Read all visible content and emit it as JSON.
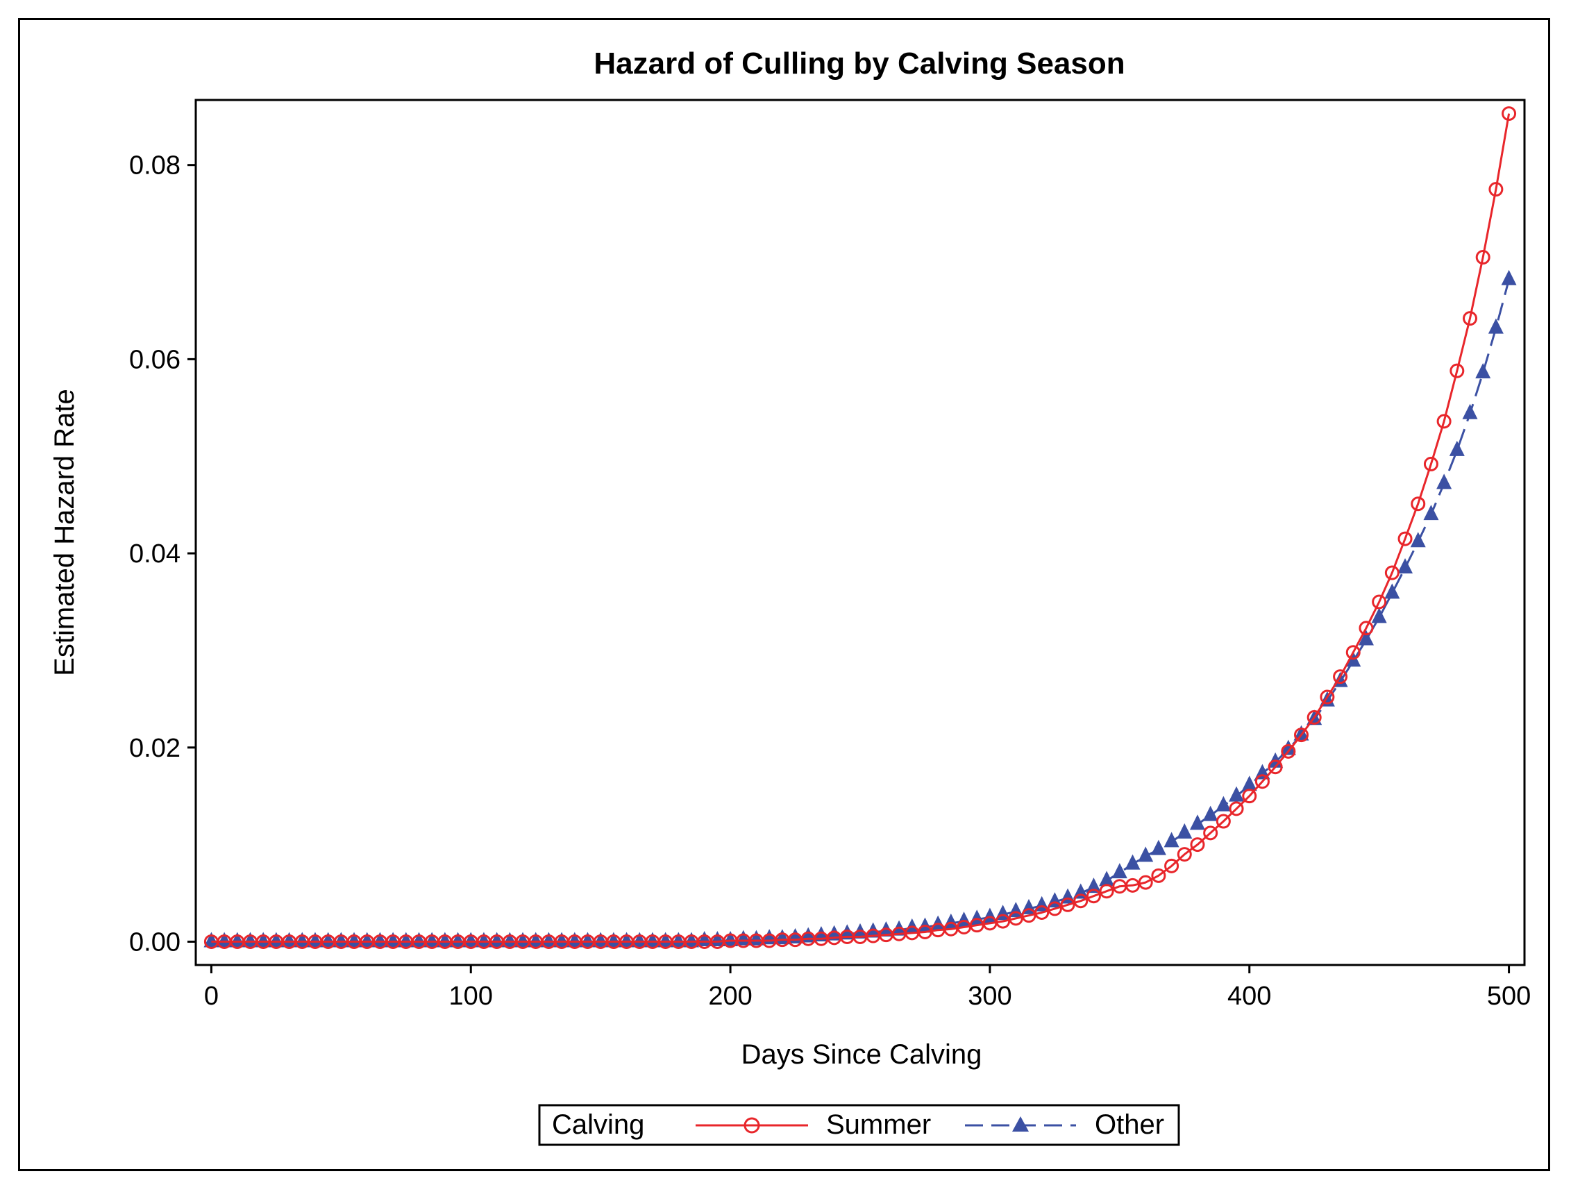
{
  "chart_data": {
    "type": "line",
    "title": "Hazard of Culling by Calving Season",
    "xlabel": "Days Since Calving",
    "ylabel": "Estimated Hazard Rate",
    "xlim": [
      -6,
      506
    ],
    "ylim": [
      -0.0024,
      0.0867
    ],
    "xticks": [
      0,
      100,
      200,
      300,
      400,
      500
    ],
    "yticks": [
      0.0,
      0.02,
      0.04,
      0.06,
      0.08
    ],
    "xtick_labels": [
      "0",
      "100",
      "200",
      "300",
      "400",
      "500"
    ],
    "ytick_labels": [
      "0.00",
      "0.02",
      "0.04",
      "0.06",
      "0.08"
    ],
    "grid": false,
    "legend": {
      "title": "Calving",
      "position": "bottom-center",
      "entries": [
        "Summer",
        "Other"
      ]
    },
    "series": [
      {
        "name": "Summer",
        "color": "#e8262b",
        "line_style": "solid",
        "marker": "circle",
        "x": [
          0,
          5,
          10,
          15,
          20,
          25,
          30,
          35,
          40,
          45,
          50,
          55,
          60,
          65,
          70,
          75,
          80,
          85,
          90,
          95,
          100,
          105,
          110,
          115,
          120,
          125,
          130,
          135,
          140,
          145,
          150,
          155,
          160,
          165,
          170,
          175,
          180,
          185,
          190,
          195,
          200,
          205,
          210,
          215,
          220,
          225,
          230,
          235,
          240,
          245,
          250,
          255,
          260,
          265,
          270,
          275,
          280,
          285,
          290,
          295,
          300,
          305,
          310,
          315,
          320,
          325,
          330,
          335,
          340,
          345,
          350,
          355,
          360,
          365,
          370,
          375,
          380,
          385,
          390,
          395,
          400,
          405,
          410,
          415,
          420,
          425,
          430,
          435,
          440,
          445,
          450,
          455,
          460,
          465,
          470,
          475,
          480,
          485,
          490,
          495,
          500
        ],
        "y": [
          0.0,
          0.0,
          0.0,
          0.0,
          0.0,
          0.0,
          0.0,
          0.0,
          0.0,
          0.0,
          0.0,
          0.0,
          0.0,
          0.0,
          0.0,
          0.0,
          0.0,
          0.0,
          0.0,
          0.0,
          0.0,
          0.0,
          0.0,
          0.0,
          0.0,
          0.0,
          0.0,
          0.0,
          0.0,
          0.0,
          0.0,
          0.0,
          0.0,
          0.0,
          0.0,
          0.0,
          0.0,
          0.0,
          0.0,
          0.0,
          0.0001,
          0.0001,
          0.0001,
          0.0001,
          0.0002,
          0.0002,
          0.0003,
          0.0003,
          0.0004,
          0.0005,
          0.0005,
          0.0006,
          0.0007,
          0.0008,
          0.0009,
          0.001,
          0.0012,
          0.0013,
          0.0015,
          0.0017,
          0.0019,
          0.0021,
          0.0024,
          0.0027,
          0.003,
          0.0034,
          0.0038,
          0.0042,
          0.0047,
          0.0052,
          0.0057,
          0.0058,
          0.0061,
          0.0068,
          0.0078,
          0.009,
          0.01,
          0.0112,
          0.0124,
          0.0137,
          0.015,
          0.0165,
          0.018,
          0.0196,
          0.0213,
          0.0231,
          0.0252,
          0.0273,
          0.0298,
          0.0323,
          0.035,
          0.038,
          0.0415,
          0.0451,
          0.0492,
          0.0536,
          0.0588,
          0.0642,
          0.0705,
          0.0775,
          0.0853
        ]
      },
      {
        "name": "Other",
        "color": "#3b50a3",
        "line_style": "dashed",
        "marker": "triangle",
        "x": [
          0,
          5,
          10,
          15,
          20,
          25,
          30,
          35,
          40,
          45,
          50,
          55,
          60,
          65,
          70,
          75,
          80,
          85,
          90,
          95,
          100,
          105,
          110,
          115,
          120,
          125,
          130,
          135,
          140,
          145,
          150,
          155,
          160,
          165,
          170,
          175,
          180,
          185,
          190,
          195,
          200,
          205,
          210,
          215,
          220,
          225,
          230,
          235,
          240,
          245,
          250,
          255,
          260,
          265,
          270,
          275,
          280,
          285,
          290,
          295,
          300,
          305,
          310,
          315,
          320,
          325,
          330,
          335,
          340,
          345,
          350,
          355,
          360,
          365,
          370,
          375,
          380,
          385,
          390,
          395,
          400,
          405,
          410,
          415,
          420,
          425,
          430,
          435,
          440,
          445,
          450,
          455,
          460,
          465,
          470,
          475,
          480,
          485,
          490,
          495,
          500
        ],
        "y": [
          0.0,
          0.0,
          0.0,
          0.0,
          0.0,
          0.0,
          0.0,
          0.0,
          0.0,
          0.0,
          0.0,
          0.0,
          0.0,
          0.0,
          0.0,
          0.0,
          0.0,
          0.0,
          0.0,
          0.0,
          0.0,
          0.0,
          0.0,
          0.0,
          0.0,
          0.0,
          0.0,
          0.0,
          0.0,
          0.0,
          0.0,
          0.0,
          0.0,
          0.0,
          0.0,
          0.0,
          0.0,
          0.0,
          0.0001,
          0.0001,
          0.0001,
          0.0002,
          0.0002,
          0.0003,
          0.0003,
          0.0004,
          0.0005,
          0.0006,
          0.0007,
          0.0008,
          0.0009,
          0.001,
          0.0011,
          0.0012,
          0.0014,
          0.0015,
          0.0017,
          0.0019,
          0.0021,
          0.0023,
          0.0025,
          0.0028,
          0.0031,
          0.0034,
          0.0037,
          0.0041,
          0.0045,
          0.005,
          0.0056,
          0.0063,
          0.0071,
          0.008,
          0.0088,
          0.0095,
          0.0103,
          0.0112,
          0.0121,
          0.013,
          0.014,
          0.015,
          0.0161,
          0.0173,
          0.0185,
          0.0198,
          0.0213,
          0.0229,
          0.0248,
          0.0268,
          0.0289,
          0.0311,
          0.0334,
          0.0359,
          0.0385,
          0.0412,
          0.044,
          0.0472,
          0.0506,
          0.0544,
          0.0586,
          0.0632,
          0.0682
        ]
      }
    ]
  }
}
